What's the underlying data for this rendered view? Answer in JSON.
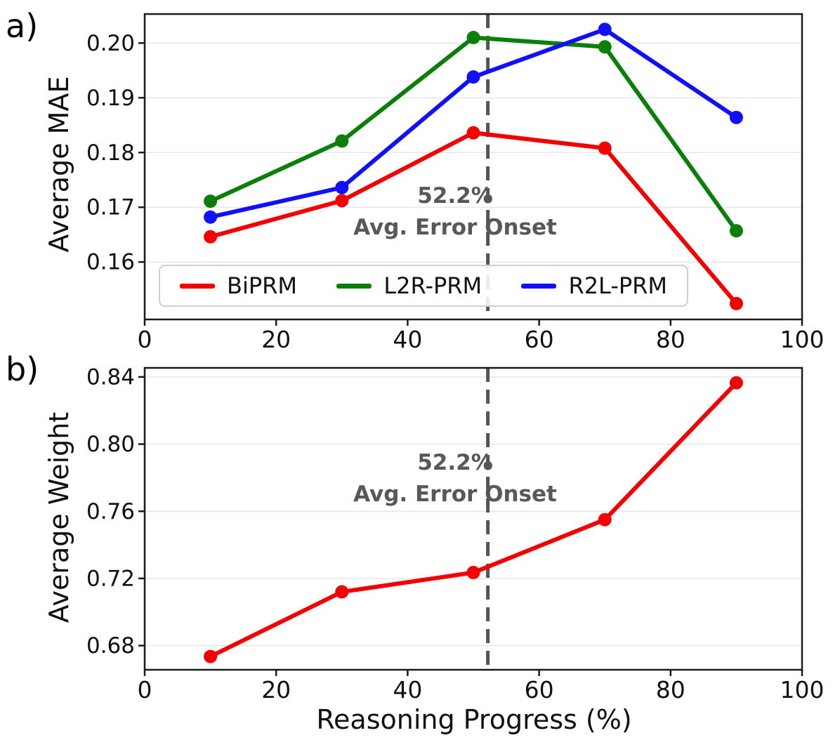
{
  "figure": {
    "panel_a_letter": "a)",
    "panel_b_letter": "b)"
  },
  "chart_data": [
    {
      "id": "panel-a",
      "type": "line",
      "title": "",
      "xlabel": "",
      "ylabel": "Average MAE",
      "x": [
        10,
        30,
        50,
        70,
        90
      ],
      "series": [
        {
          "name": "BiPRM",
          "color": "#f50000",
          "values": [
            0.1646,
            0.1712,
            0.1836,
            0.1808,
            0.1524
          ]
        },
        {
          "name": "L2R-PRM",
          "color": "#0a7f0a",
          "values": [
            0.1711,
            0.1821,
            0.201,
            0.1993,
            0.1657
          ]
        },
        {
          "name": "R2L-PRM",
          "color": "#1010ff",
          "values": [
            0.1682,
            0.1736,
            0.1938,
            0.2025,
            0.1864
          ]
        }
      ],
      "xlim": [
        0,
        100
      ],
      "ylim": [
        0.1495,
        0.2053
      ],
      "xticks": {
        "values": [
          0,
          20,
          40,
          60,
          80,
          100
        ],
        "labels": [
          "0",
          "20",
          "40",
          "60",
          "80",
          "100"
        ]
      },
      "yticks": {
        "values": [
          0.16,
          0.17,
          0.18,
          0.19,
          0.2
        ],
        "labels": [
          "0.16",
          "0.17",
          "0.18",
          "0.19",
          "0.20"
        ]
      },
      "grid": "horizontal",
      "vline": {
        "x": 52.2,
        "color": "#555555",
        "style": "dashed",
        "line1": "52.2%",
        "line2": "Avg. Error Onset"
      },
      "legend": {
        "position": "lower center",
        "entries": [
          "BiPRM",
          "L2R-PRM",
          "R2L-PRM"
        ]
      }
    },
    {
      "id": "panel-b",
      "type": "line",
      "title": "",
      "xlabel": "Reasoning Progress (%)",
      "ylabel": "Average Weight",
      "x": [
        10,
        30,
        50,
        70,
        90
      ],
      "series": [
        {
          "name": "BiPRM",
          "color": "#f50000",
          "values": [
            0.6735,
            0.712,
            0.7235,
            0.755,
            0.8365
          ]
        }
      ],
      "xlim": [
        0,
        100
      ],
      "ylim": [
        0.6656,
        0.8454
      ],
      "xticks": {
        "values": [
          0,
          20,
          40,
          60,
          80,
          100
        ],
        "labels": [
          "0",
          "20",
          "40",
          "60",
          "80",
          "100"
        ]
      },
      "yticks": {
        "values": [
          0.68,
          0.72,
          0.76,
          0.8,
          0.84
        ],
        "labels": [
          "0.68",
          "0.72",
          "0.76",
          "0.80",
          "0.84"
        ]
      },
      "grid": "horizontal",
      "vline": {
        "x": 52.2,
        "color": "#555555",
        "style": "dashed",
        "line1": "52.2%",
        "line2": "Avg. Error Onset"
      },
      "legend": null
    }
  ]
}
